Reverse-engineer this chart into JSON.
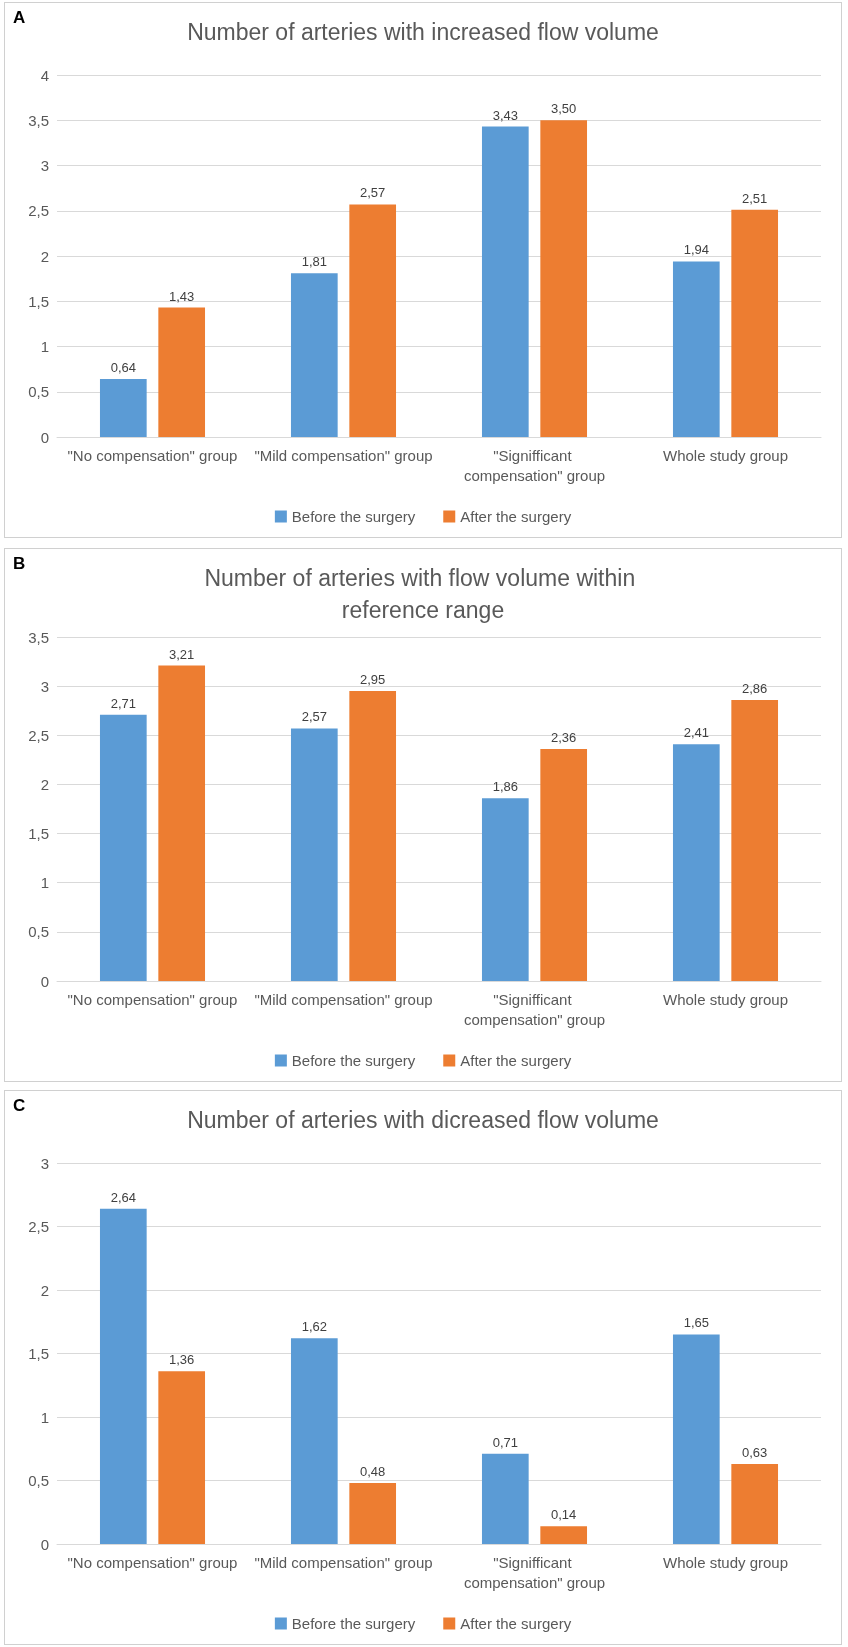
{
  "chart_data": [
    {
      "type": "bar",
      "title": "Number of arteries with increased flow volume",
      "annotations": [
        "A"
      ],
      "categories": [
        "\"No compensation\" group",
        "\"Mild compensation\" group",
        "\"Signifficant compensation\" group",
        "Whole study group"
      ],
      "series": [
        {
          "name": "Before the surgery",
          "color": "#5b9bd5",
          "values": [
            0.64,
            1.81,
            3.43,
            1.94
          ],
          "value_labels": [
            "0,64",
            "1,81",
            "3,43",
            "1,94"
          ]
        },
        {
          "name": "After the surgery",
          "color": "#ed7d31",
          "values": [
            1.43,
            2.57,
            3.5,
            2.51
          ],
          "value_labels": [
            "1,43",
            "2,57",
            "3,50",
            "2,51"
          ]
        }
      ],
      "ylim": [
        0,
        4
      ],
      "yticks": [
        0,
        {
          "value": 0.5,
          "label": "0,5"
        },
        1,
        {
          "value": 1.5,
          "label": "1,5"
        },
        2,
        {
          "value": 2.5,
          "label": "2,5"
        },
        3,
        {
          "value": 3.5,
          "label": "3,5"
        },
        4
      ],
      "grid": "y",
      "legend": "bottom"
    },
    {
      "type": "bar",
      "title": "Number of arteries with flow volume within reference range",
      "annotations": [
        "B"
      ],
      "categories": [
        "\"No compensation\" group",
        "\"Mild compensation\" group",
        "\"Signifficant compensation\" group",
        "Whole study group"
      ],
      "series": [
        {
          "name": "Before the surgery",
          "color": "#5b9bd5",
          "values": [
            2.71,
            2.57,
            1.86,
            2.41
          ],
          "value_labels": [
            "2,71",
            "2,57",
            "1,86",
            "2,41"
          ]
        },
        {
          "name": "After the surgery",
          "color": "#ed7d31",
          "values": [
            3.21,
            2.95,
            2.36,
            2.86
          ],
          "value_labels": [
            "3,21",
            "2,95",
            "2,36",
            "2,86"
          ]
        }
      ],
      "ylim": [
        0,
        3.5
      ],
      "yticks": [
        0,
        {
          "value": 0.5,
          "label": "0,5"
        },
        1,
        {
          "value": 1.5,
          "label": "1,5"
        },
        2,
        {
          "value": 2.5,
          "label": "2,5"
        },
        3,
        {
          "value": 3.5,
          "label": "3,5"
        }
      ],
      "grid": "y",
      "legend": "bottom"
    },
    {
      "type": "bar",
      "title": "Number of arteries with dicreased flow volume",
      "annotations": [
        "C"
      ],
      "categories": [
        "\"No compensation\" group",
        "\"Mild compensation\" group",
        "\"Signifficant compensation\" group",
        "Whole study group"
      ],
      "series": [
        {
          "name": "Before the surgery",
          "color": "#5b9bd5",
          "values": [
            2.64,
            1.62,
            0.71,
            1.65
          ],
          "value_labels": [
            "2,64",
            "1,62",
            "0,71",
            "1,65"
          ]
        },
        {
          "name": "After the surgery",
          "color": "#ed7d31",
          "values": [
            1.36,
            0.48,
            0.14,
            0.63
          ],
          "value_labels": [
            "1,36",
            "0,48",
            "0,14",
            "0,63"
          ]
        }
      ],
      "ylim": [
        0,
        3
      ],
      "yticks": [
        0,
        {
          "value": 0.5,
          "label": "0,5"
        },
        1,
        {
          "value": 1.5,
          "label": "1,5"
        },
        2,
        {
          "value": 2.5,
          "label": "2,5"
        },
        3
      ],
      "grid": "y",
      "legend": "bottom"
    }
  ]
}
